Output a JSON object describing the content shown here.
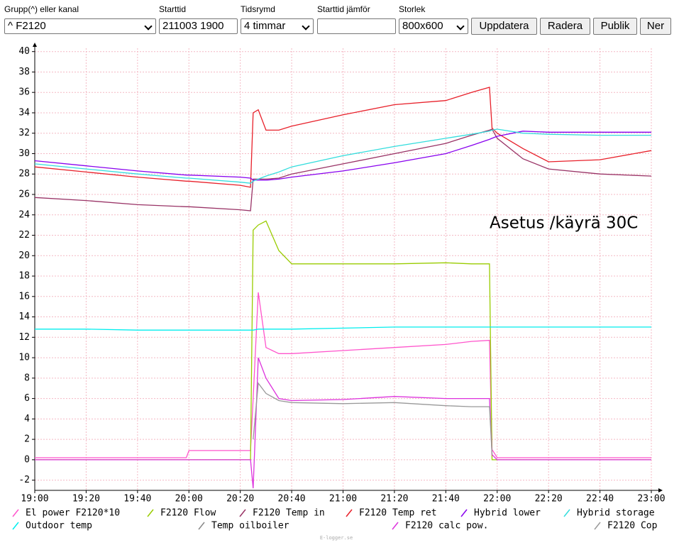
{
  "form": {
    "group_label": "Grupp(^) eller kanal",
    "group_value": "^ F2120",
    "start_label": "Starttid",
    "start_value": "211003 1900",
    "span_label": "Tidsrymd",
    "span_value": "4 timmar",
    "compare_label": "Starttid jämför",
    "size_label": "Storlek",
    "size_value": "800x600",
    "buttons": [
      "Uppdatera",
      "Radera",
      "Publik",
      "Ner"
    ]
  },
  "chart_data": {
    "type": "line",
    "annotation": "Asetus /käyrä 30C",
    "x": [
      "19:00",
      "19:20",
      "19:40",
      "19:59",
      "20:00",
      "20:20",
      "20:24",
      "20:25",
      "20:27",
      "20:30",
      "20:35",
      "20:40",
      "21:00",
      "21:20",
      "21:40",
      "21:50",
      "21:57",
      "21:58",
      "22:00",
      "22:10",
      "22:20",
      "22:40",
      "23:00"
    ],
    "xlim": [
      "19:00",
      "23:00"
    ],
    "xticks": [
      "19:00",
      "19:20",
      "19:40",
      "20:00",
      "20:20",
      "20:40",
      "21:00",
      "21:20",
      "21:40",
      "22:00",
      "22:20",
      "22:40",
      "23:00"
    ],
    "ylim": [
      -3,
      40.5
    ],
    "yticks": [
      -2,
      0,
      2,
      4,
      6,
      8,
      10,
      12,
      14,
      16,
      18,
      20,
      22,
      24,
      26,
      28,
      30,
      32,
      34,
      36,
      38,
      40
    ],
    "grid": true,
    "series": [
      {
        "name": "El power F2120*10",
        "color": "#ff55cc",
        "values": [
          0.2,
          0.2,
          0.2,
          0.2,
          0.9,
          0.9,
          0.9,
          6,
          16.4,
          11,
          10.4,
          10.4,
          10.7,
          11,
          11.3,
          11.6,
          11.7,
          1,
          0.2,
          0.2,
          0.2,
          0.2,
          0.2
        ]
      },
      {
        "name": "F2120 Flow",
        "color": "#99cc00",
        "values": [
          0,
          0,
          0,
          0,
          0,
          0,
          0,
          22.5,
          23,
          23.4,
          20.5,
          19.2,
          19.2,
          19.2,
          19.3,
          19.2,
          19.2,
          0,
          0,
          0,
          0,
          0,
          0
        ]
      },
      {
        "name": "F2120 Temp in",
        "color": "#993366",
        "values": [
          25.7,
          25.4,
          25,
          24.8,
          24.8,
          24.5,
          24.4,
          27.5,
          27.5,
          27.5,
          27.6,
          28,
          29,
          30,
          31,
          31.8,
          32.3,
          32.4,
          31.5,
          29.5,
          28.5,
          28,
          27.8
        ]
      },
      {
        "name": "F2120 Temp ret",
        "color": "#e8202a",
        "values": [
          28.7,
          28.2,
          27.7,
          27.3,
          27.3,
          26.9,
          26.7,
          34,
          34.3,
          32.3,
          32.3,
          32.7,
          33.8,
          34.8,
          35.2,
          36,
          36.5,
          32.5,
          32,
          30.5,
          29.2,
          29.4,
          30.3
        ]
      },
      {
        "name": "Hybrid lower",
        "color": "#8800ee",
        "values": [
          29.3,
          28.8,
          28.3,
          27.9,
          27.9,
          27.7,
          27.6,
          27.4,
          27.4,
          27.4,
          27.5,
          27.7,
          28.3,
          29.1,
          30,
          30.8,
          31.4,
          31.5,
          31.7,
          32.2,
          32.1,
          32.1,
          32.1
        ]
      },
      {
        "name": "Hybrid storage",
        "color": "#33dddd",
        "values": [
          29,
          28.5,
          28,
          27.6,
          27.6,
          27.2,
          27.1,
          27.3,
          27.5,
          27.8,
          28.2,
          28.7,
          29.8,
          30.7,
          31.5,
          31.9,
          32.2,
          32.3,
          32.4,
          32,
          31.9,
          31.8,
          31.8
        ]
      },
      {
        "name": "Outdoor temp",
        "color": "#00eeee",
        "values": [
          12.8,
          12.8,
          12.7,
          12.7,
          12.7,
          12.7,
          12.7,
          12.7,
          12.8,
          12.8,
          12.8,
          12.8,
          12.9,
          13,
          13,
          13,
          13,
          13,
          13,
          13,
          13,
          13,
          13
        ]
      },
      {
        "name": "Temp oilboiler",
        "color": "#888888",
        "values": [
          null,
          null,
          null,
          null,
          null,
          null,
          null,
          null,
          null,
          null,
          null,
          null,
          null,
          null,
          null,
          null,
          null,
          null,
          null,
          null,
          null,
          null,
          null
        ]
      },
      {
        "name": "F2120 calc pow.",
        "color": "#dd33dd",
        "values": [
          0,
          0,
          0,
          0,
          0,
          0,
          0,
          -2.8,
          10,
          8,
          6,
          5.8,
          5.9,
          6.2,
          6,
          6,
          6,
          0.5,
          0,
          0,
          0,
          0,
          0
        ]
      },
      {
        "name": "F2120 Cop",
        "color": "#999999",
        "values": [
          null,
          null,
          null,
          null,
          null,
          null,
          null,
          2,
          7.5,
          6.5,
          5.8,
          5.6,
          5.5,
          5.6,
          5.3,
          5.2,
          5.2,
          0.5,
          null,
          null,
          null,
          null,
          null
        ]
      }
    ]
  },
  "footer": "E-logger.se"
}
